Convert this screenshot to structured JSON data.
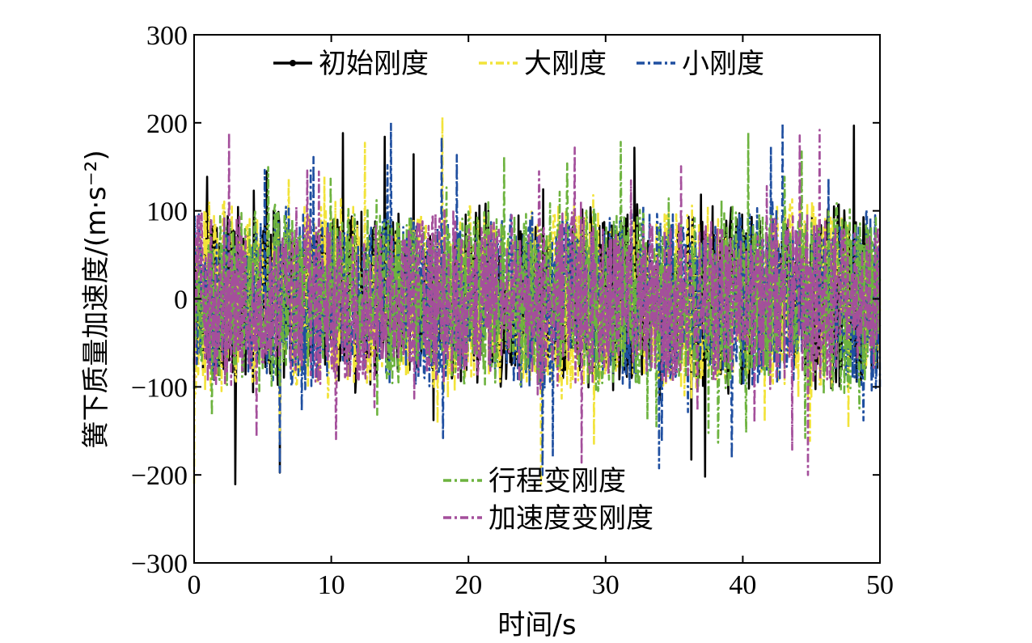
{
  "chart_data": {
    "type": "line",
    "xlabel": "时间/s",
    "ylabel": "簧下质量加速度/(m·s⁻²)",
    "xlim": [
      0,
      50
    ],
    "ylim": [
      -300,
      300
    ],
    "x_ticks": [
      "0",
      "10",
      "20",
      "30",
      "40",
      "50"
    ],
    "y_ticks": [
      "300",
      "200",
      "100",
      "0",
      "−100",
      "−200",
      "−300"
    ],
    "grid": false,
    "sample_step": 0.05,
    "series": [
      {
        "name": "初始刚度",
        "color": "#000000",
        "style": "solid-dot",
        "amplitude": 62,
        "peak": 225,
        "seed": 11
      },
      {
        "name": "大刚度",
        "color": "#f2e33a",
        "style": "dash-dot",
        "amplitude": 65,
        "peak": 210,
        "seed": 23
      },
      {
        "name": "小刚度",
        "color": "#1f4fa0",
        "style": "dash-dot",
        "amplitude": 60,
        "peak": 200,
        "seed": 37
      },
      {
        "name": "行程变刚度",
        "color": "#6db33f",
        "style": "dash-dot",
        "amplitude": 64,
        "peak": 230,
        "seed": 51
      },
      {
        "name": "加速度变刚度",
        "color": "#a44f9b",
        "style": "dash-dot",
        "amplitude": 58,
        "peak": 200,
        "seed": 73
      }
    ],
    "legend": [
      {
        "placement": "top-center",
        "entries": [
          0,
          1,
          2
        ]
      },
      {
        "placement": "bottom-center",
        "entries": [
          3,
          4
        ]
      }
    ]
  }
}
